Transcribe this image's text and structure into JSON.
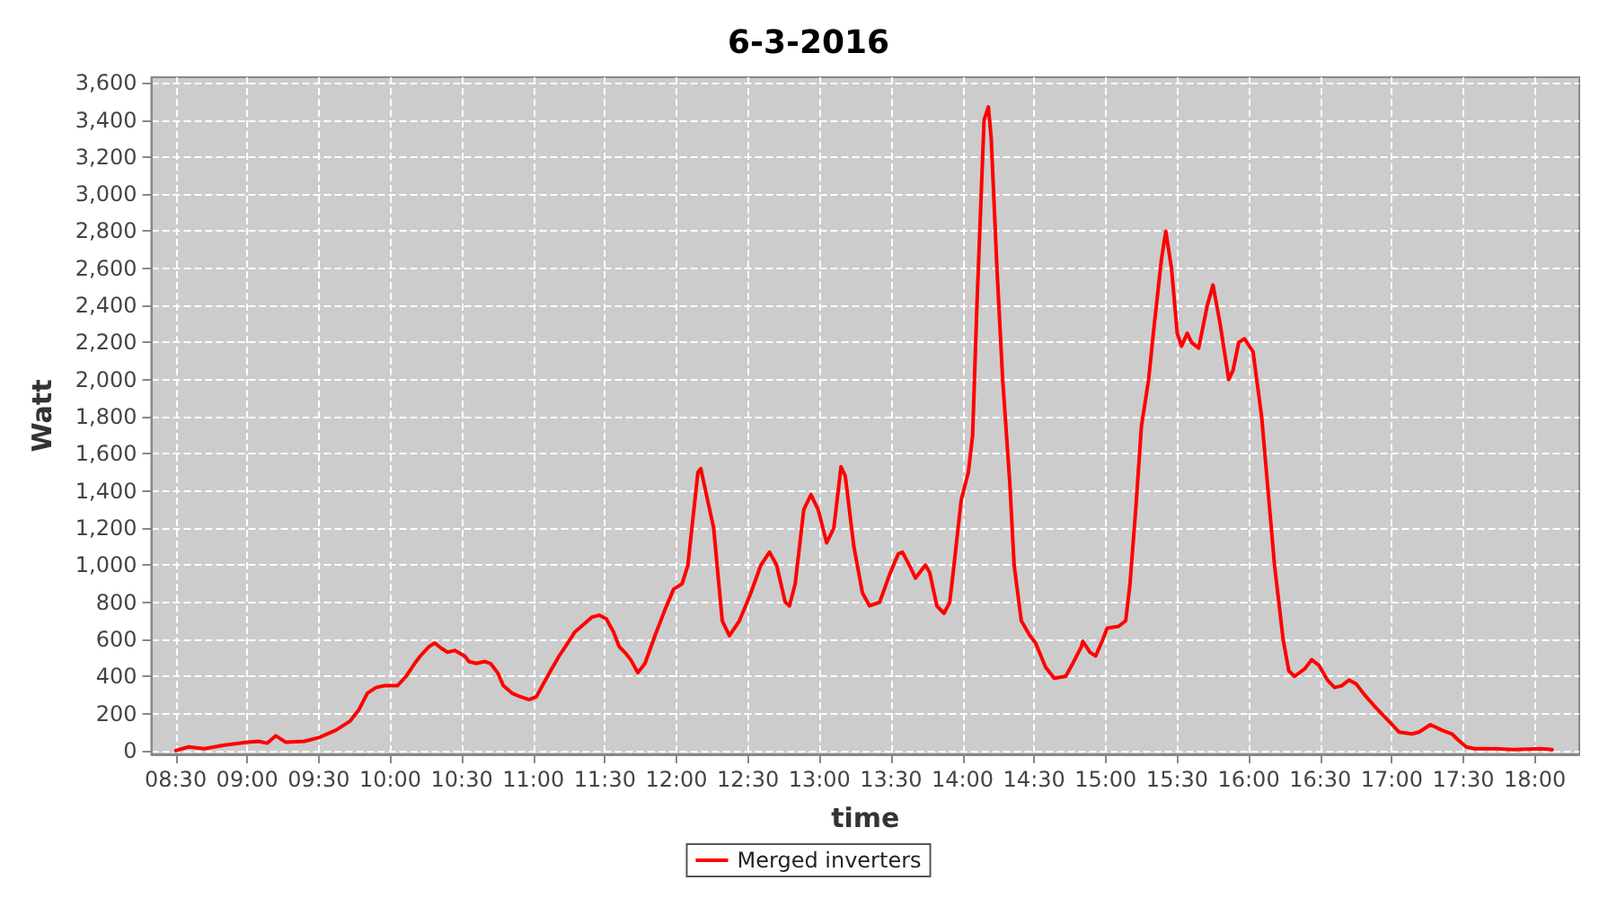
{
  "chart_data": {
    "type": "line",
    "title": "6-3-2016",
    "xlabel": "time",
    "ylabel": "Watt",
    "legend": "bottom",
    "grid": true,
    "marker": "none",
    "line_style": "solid",
    "xlim": [
      8.33,
      18.31
    ],
    "xticks": [
      {
        "value": 8.5,
        "label": "08:30"
      },
      {
        "value": 9,
        "label": "09:00"
      },
      {
        "value": 9.5,
        "label": "09:30"
      },
      {
        "value": 10,
        "label": "10:00"
      },
      {
        "value": 10.5,
        "label": "10:30"
      },
      {
        "value": 11,
        "label": "11:00"
      },
      {
        "value": 11.5,
        "label": "11:30"
      },
      {
        "value": 12,
        "label": "12:00"
      },
      {
        "value": 12.5,
        "label": "12:30"
      },
      {
        "value": 13,
        "label": "13:00"
      },
      {
        "value": 13.5,
        "label": "13:30"
      },
      {
        "value": 14,
        "label": "14:00"
      },
      {
        "value": 14.5,
        "label": "14:30"
      },
      {
        "value": 15,
        "label": "15:00"
      },
      {
        "value": 15.5,
        "label": "15:30"
      },
      {
        "value": 16,
        "label": "16:00"
      },
      {
        "value": 16.5,
        "label": "16:30"
      },
      {
        "value": 17,
        "label": "17:00"
      },
      {
        "value": 17.5,
        "label": "17:30"
      },
      {
        "value": 18,
        "label": "18:00"
      }
    ],
    "ylim": [
      -20,
      3630
    ],
    "yticks": [
      0,
      200,
      400,
      600,
      800,
      {
        "value": 1000,
        "label": "1,000"
      },
      {
        "value": 1200,
        "label": "1,200"
      },
      {
        "value": 1400,
        "label": "1,400"
      },
      {
        "value": 1600,
        "label": "1,600"
      },
      {
        "value": 1800,
        "label": "1,800"
      },
      {
        "value": 2000,
        "label": "2,000"
      },
      {
        "value": 2200,
        "label": "2,200"
      },
      {
        "value": 2400,
        "label": "2,400"
      },
      {
        "value": 2600,
        "label": "2,600"
      },
      {
        "value": 2800,
        "label": "2,800"
      },
      {
        "value": 3000,
        "label": "3,000"
      },
      {
        "value": 3200,
        "label": "3,200"
      },
      {
        "value": 3400,
        "label": "3,400"
      },
      {
        "value": 3600,
        "label": "3,600"
      }
    ],
    "x": [
      8.5,
      8.59,
      8.7,
      8.84,
      9.0,
      9.08,
      9.14,
      9.2,
      9.27,
      9.4,
      9.5,
      9.62,
      9.72,
      9.78,
      9.84,
      9.9,
      9.96,
      10.05,
      10.11,
      10.18,
      10.21,
      10.27,
      10.31,
      10.36,
      10.4,
      10.45,
      10.52,
      10.55,
      10.6,
      10.66,
      10.7,
      10.75,
      10.79,
      10.85,
      10.91,
      10.97,
      11.02,
      11.07,
      11.12,
      11.18,
      11.24,
      11.29,
      11.35,
      11.41,
      11.46,
      11.51,
      11.56,
      11.6,
      11.65,
      11.68,
      11.73,
      11.78,
      11.85,
      11.92,
      11.98,
      12.04,
      12.08,
      12.15,
      12.17,
      12.26,
      12.32,
      12.37,
      12.44,
      12.52,
      12.59,
      12.65,
      12.7,
      12.76,
      12.79,
      12.83,
      12.89,
      12.94,
      12.99,
      13.05,
      13.1,
      13.15,
      13.18,
      13.24,
      13.3,
      13.35,
      13.42,
      13.49,
      13.55,
      13.58,
      13.64,
      13.67,
      13.74,
      13.77,
      13.82,
      13.87,
      13.91,
      13.94,
      13.99,
      14.04,
      14.07,
      14.1,
      14.13,
      14.15,
      14.18,
      14.2,
      14.24,
      14.28,
      14.33,
      14.36,
      14.41,
      14.47,
      14.51,
      14.58,
      14.64,
      14.72,
      14.77,
      14.83,
      14.84,
      14.89,
      14.93,
      14.98,
      15.01,
      15.09,
      15.14,
      15.17,
      15.21,
      15.25,
      15.3,
      15.34,
      15.39,
      15.42,
      15.46,
      15.5,
      15.53,
      15.57,
      15.6,
      15.65,
      15.71,
      15.75,
      15.8,
      15.86,
      15.89,
      15.93,
      15.97,
      16.03,
      16.09,
      16.18,
      16.24,
      16.28,
      16.32,
      16.39,
      16.44,
      16.49,
      16.55,
      16.6,
      16.65,
      16.7,
      16.75,
      16.81,
      16.89,
      16.99,
      17.05,
      17.14,
      17.19,
      17.27,
      17.35,
      17.42,
      17.46,
      17.52,
      17.58,
      17.73,
      17.85,
      18.04,
      18.12
    ],
    "series": [
      {
        "name": "Merged inverters",
        "color": "#ff0000",
        "values": [
          0,
          20,
          10,
          30,
          45,
          50,
          40,
          80,
          45,
          50,
          70,
          110,
          160,
          220,
          310,
          340,
          350,
          350,
          400,
          480,
          510,
          560,
          580,
          550,
          530,
          540,
          510,
          480,
          470,
          480,
          470,
          420,
          350,
          310,
          290,
          275,
          290,
          360,
          430,
          510,
          580,
          640,
          680,
          720,
          730,
          710,
          640,
          560,
          520,
          490,
          420,
          470,
          620,
          760,
          870,
          900,
          1000,
          1500,
          1520,
          1200,
          700,
          620,
          700,
          850,
          1000,
          1070,
          1000,
          800,
          780,
          900,
          1300,
          1380,
          1300,
          1120,
          1200,
          1530,
          1480,
          1100,
          850,
          780,
          800,
          950,
          1060,
          1070,
          980,
          930,
          1000,
          960,
          780,
          740,
          800,
          1000,
          1350,
          1500,
          1700,
          2400,
          3000,
          3400,
          3470,
          3300,
          2600,
          2000,
          1440,
          1000,
          700,
          620,
          580,
          450,
          390,
          400,
          470,
          560,
          590,
          530,
          510,
          600,
          660,
          670,
          700,
          900,
          1300,
          1750,
          2000,
          2300,
          2650,
          2800,
          2600,
          2250,
          2180,
          2250,
          2200,
          2170,
          2400,
          2510,
          2300,
          2000,
          2050,
          2200,
          2220,
          2150,
          1800,
          1000,
          600,
          430,
          400,
          440,
          490,
          460,
          380,
          340,
          350,
          380,
          360,
          300,
          230,
          150,
          100,
          90,
          100,
          140,
          110,
          90,
          60,
          20,
          10,
          10,
          5,
          10,
          5
        ]
      }
    ]
  }
}
